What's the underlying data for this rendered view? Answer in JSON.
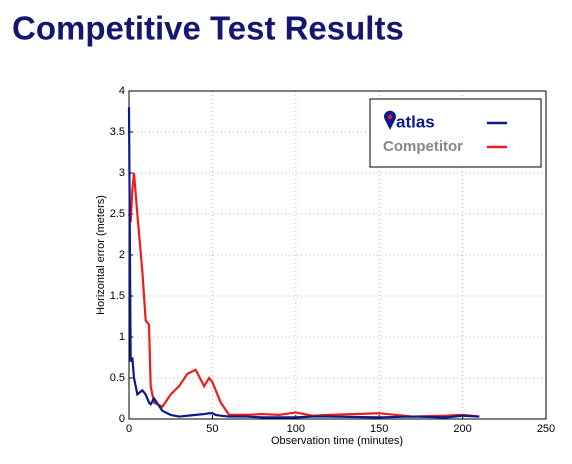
{
  "chart_data": {
    "type": "line",
    "title": "Competitive Test Results",
    "x_label": "Observation time (minutes)",
    "y_label": "Horizontal error (meters)",
    "x": [
      0,
      1,
      2,
      3,
      5,
      8,
      10,
      12,
      13,
      15,
      20,
      25,
      30,
      35,
      40,
      45,
      48,
      50,
      52,
      55,
      60,
      70,
      80,
      90,
      100,
      110,
      120,
      150,
      170,
      190,
      200,
      210
    ],
    "series": [
      {
        "name": "atlas",
        "color": "#0c1a8c",
        "values": [
          3.8,
          0.7,
          0.75,
          0.5,
          0.3,
          0.35,
          0.3,
          0.2,
          0.18,
          0.25,
          0.1,
          0.05,
          0.03,
          0.04,
          0.05,
          0.06,
          0.07,
          0.07,
          0.05,
          0.04,
          0.03,
          0.03,
          0.02,
          0.02,
          0.02,
          0.03,
          0.03,
          0.02,
          0.03,
          0.02,
          0.04,
          0.03
        ]
      },
      {
        "name": "Competitor",
        "color": "#ee1c1c",
        "values": [
          2.5,
          2.4,
          2.8,
          3.0,
          2.5,
          1.8,
          1.2,
          1.15,
          0.4,
          0.2,
          0.15,
          0.3,
          0.4,
          0.55,
          0.6,
          0.4,
          0.5,
          0.45,
          0.35,
          0.2,
          0.05,
          0.05,
          0.06,
          0.05,
          0.08,
          0.04,
          0.05,
          0.07,
          0.03,
          0.04,
          0.05,
          0.03
        ]
      }
    ],
    "xlim": [
      0,
      250
    ],
    "xticks": [
      0,
      50,
      100,
      150,
      200,
      250
    ],
    "ylim": [
      0,
      4
    ],
    "yticks": [
      0,
      0.5,
      1,
      1.5,
      2,
      2.5,
      3,
      3.5,
      4
    ],
    "grid": true,
    "legend": "upper right"
  }
}
